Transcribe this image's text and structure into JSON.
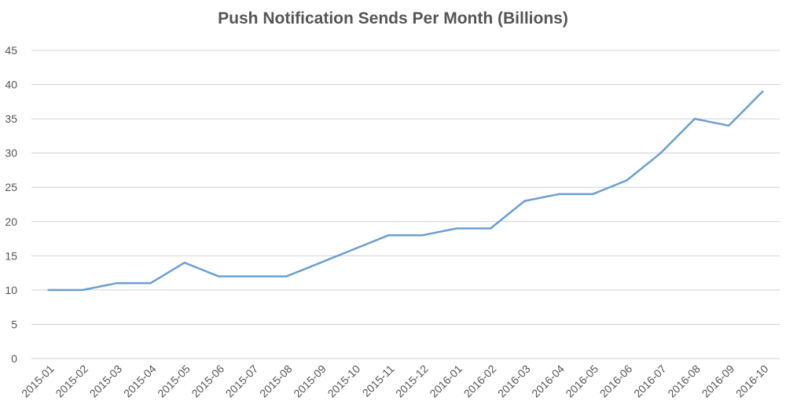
{
  "chart_data": {
    "type": "line",
    "title": "Push Notification Sends Per Month (Billions)",
    "xlabel": "",
    "ylabel": "",
    "categories": [
      "2015-01",
      "2015-02",
      "2015-03",
      "2015-04",
      "2015-05",
      "2015-06",
      "2015-07",
      "2015-08",
      "2015-09",
      "2015-10",
      "2015-11",
      "2015-12",
      "2016-01",
      "2016-02",
      "2016-03",
      "2016-04",
      "2016-05",
      "2016-06",
      "2016-07",
      "2016-08",
      "2016-09",
      "2016-10"
    ],
    "series": [
      {
        "values": [
          10,
          10,
          11,
          11,
          14,
          12,
          12,
          12,
          14,
          16,
          18,
          18,
          19,
          19,
          23,
          24,
          24,
          26,
          30,
          35,
          34,
          39
        ],
        "color": "#6a9fd1"
      }
    ],
    "yticks": [
      0,
      5,
      10,
      15,
      20,
      25,
      30,
      35,
      40,
      45
    ],
    "ylim": [
      0,
      45
    ],
    "grid": "horizontal",
    "legend": "none"
  }
}
